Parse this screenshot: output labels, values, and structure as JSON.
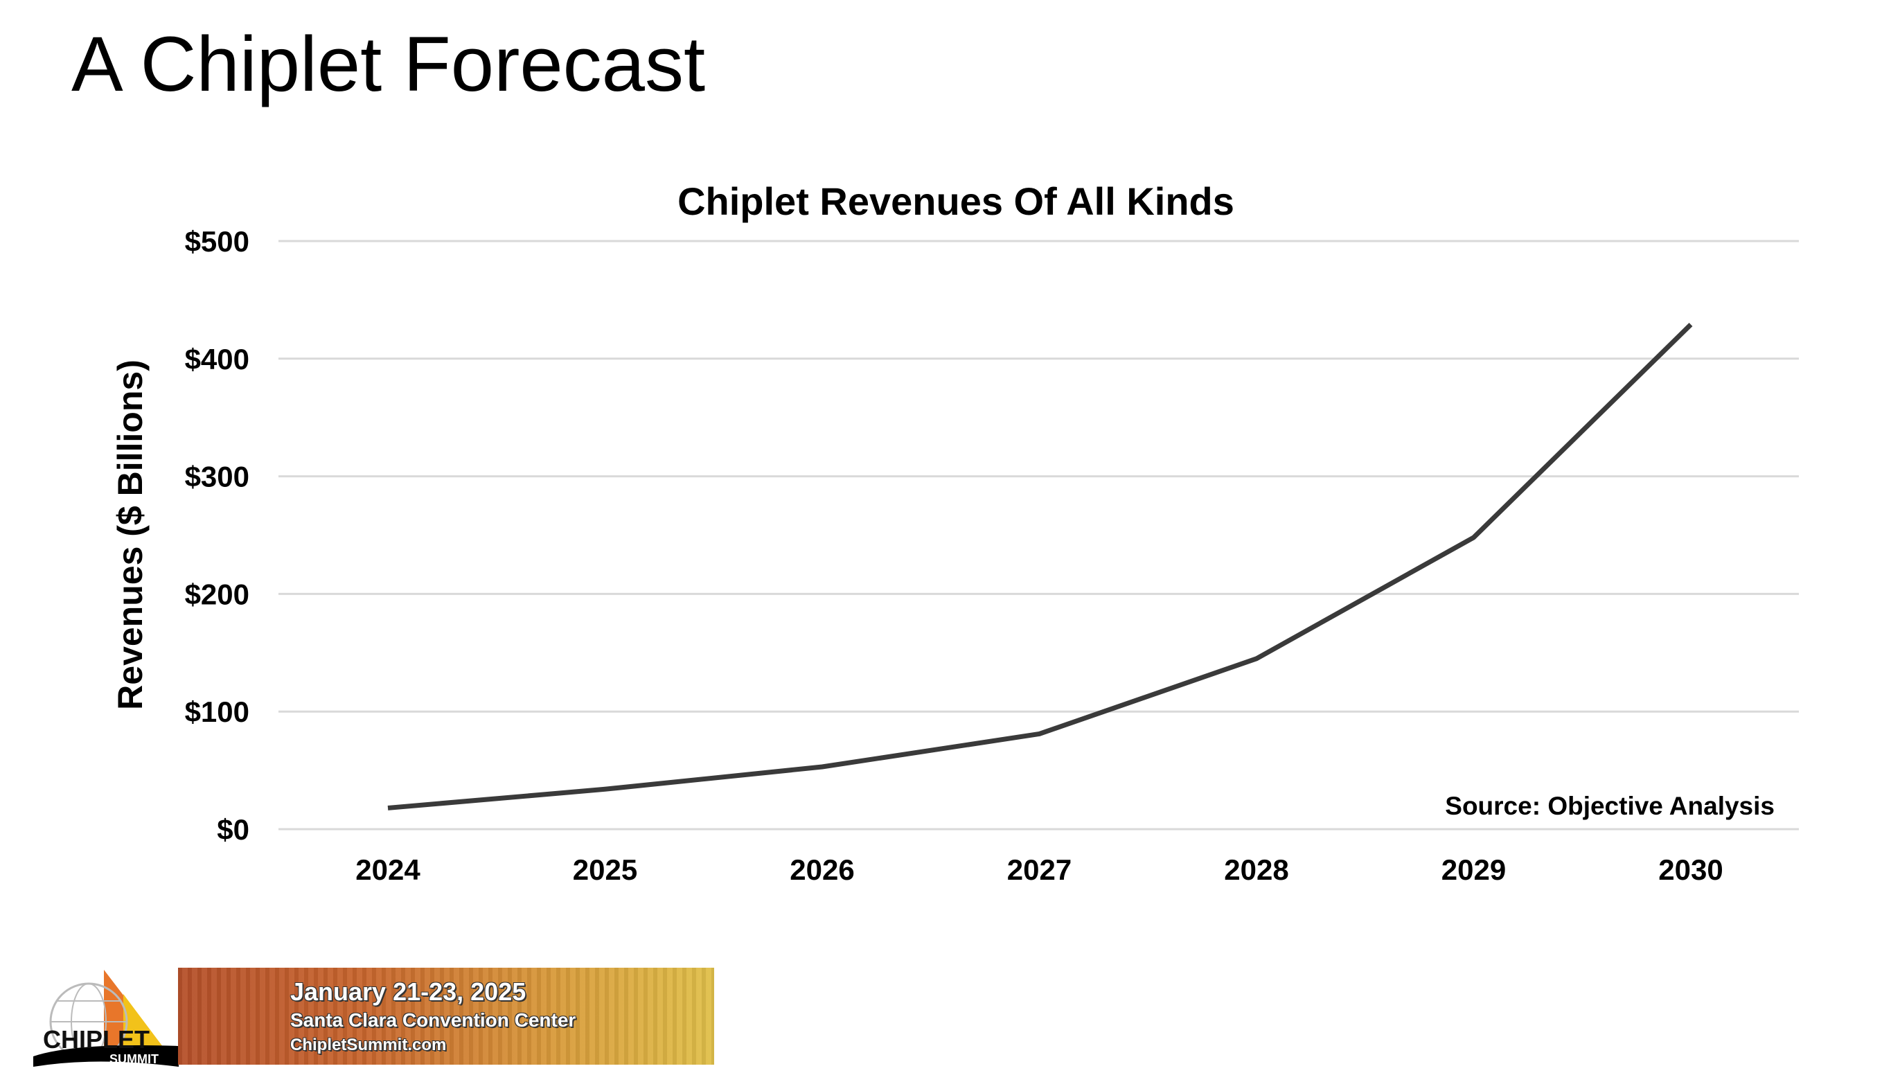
{
  "slide": {
    "title": "A Chiplet Forecast"
  },
  "chart_data": {
    "type": "line",
    "title": "Chiplet Revenues Of All Kinds",
    "xlabel": "",
    "ylabel": "Revenues ($ Billions)",
    "categories": [
      "2024",
      "2025",
      "2026",
      "2027",
      "2028",
      "2029",
      "2030"
    ],
    "values": [
      18,
      34,
      53,
      81,
      145,
      248,
      429
    ],
    "ylim": [
      0,
      500
    ],
    "yticks": [
      0,
      100,
      200,
      300,
      400,
      500
    ],
    "ytick_labels": [
      "$0",
      "$100",
      "$200",
      "$300",
      "$400",
      "$500"
    ],
    "grid": true,
    "line_color": "#3a3a3a",
    "grid_color": "#d9d9d9",
    "annotation": "Source: Objective Analysis"
  },
  "footer": {
    "logo_text": "CHIPLET SUMMIT",
    "banner_date": "January 21-23, 2025",
    "banner_venue": "Santa Clara Convention Center",
    "banner_url": "ChipletSummit.com"
  }
}
